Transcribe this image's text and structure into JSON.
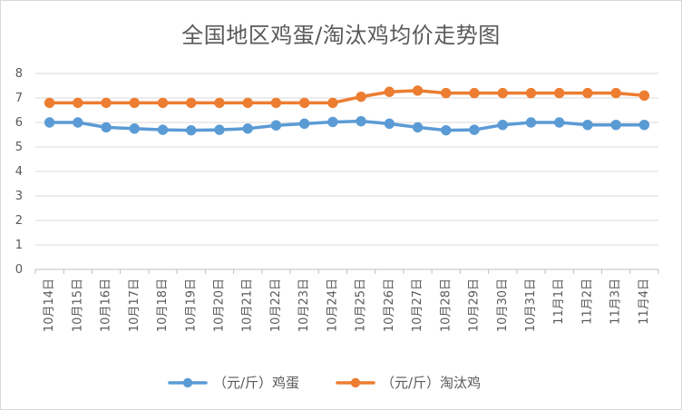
{
  "chart_data": {
    "type": "line",
    "title": "全国地区鸡蛋/淘汰鸡均价走势图",
    "categories": [
      "10月14日",
      "10月15日",
      "10月16日",
      "10月17日",
      "10月18日",
      "10月19日",
      "10月20日",
      "10月21日",
      "10月22日",
      "10月23日",
      "10月24日",
      "10月25日",
      "10月26日",
      "10月27日",
      "10月28日",
      "10月29日",
      "10月30日",
      "10月31日",
      "11月1日",
      "11月2日",
      "11月3日",
      "11月4日"
    ],
    "series": [
      {
        "name": "（元/斤）鸡蛋",
        "color": "#5b9bd5",
        "values": [
          6.0,
          6.0,
          5.8,
          5.75,
          5.7,
          5.68,
          5.7,
          5.75,
          5.88,
          5.95,
          6.02,
          6.05,
          5.95,
          5.8,
          5.68,
          5.7,
          5.9,
          6.0,
          6.0,
          5.9,
          5.9,
          5.9
        ]
      },
      {
        "name": "（元/斤）淘汰鸡",
        "color": "#ed7d31",
        "values": [
          6.8,
          6.8,
          6.8,
          6.8,
          6.8,
          6.8,
          6.8,
          6.8,
          6.8,
          6.8,
          6.8,
          7.05,
          7.25,
          7.3,
          7.2,
          7.2,
          7.2,
          7.2,
          7.2,
          7.2,
          7.2,
          7.1
        ]
      }
    ],
    "ylim": [
      0,
      8
    ],
    "yticks": [
      "0",
      "1",
      "2",
      "3",
      "4",
      "5",
      "6",
      "7",
      "8"
    ],
    "grid": true,
    "legend_position": "bottom"
  }
}
